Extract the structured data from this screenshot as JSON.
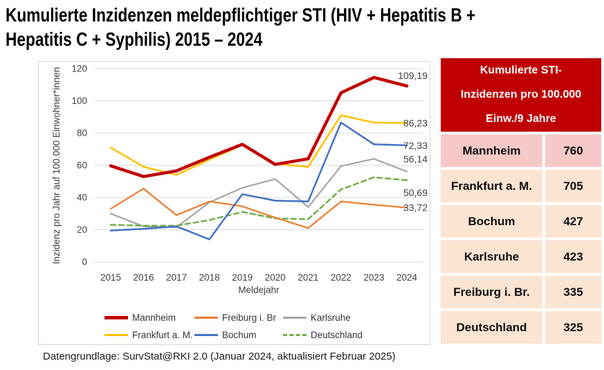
{
  "title": {
    "line1": "Kumulierte Inzidenzen meldepflichtiger STI (HIV + Hepatitis B +",
    "line2": "Hepatitis C + Syphilis) 2015 – 2024"
  },
  "chart_data": {
    "type": "line",
    "x": [
      2015,
      2016,
      2017,
      2018,
      2019,
      2020,
      2021,
      2022,
      2023,
      2024
    ],
    "xlabel": "Meldejahr",
    "ylabel": "Inzidenz pro Jahr auf 100.000 Einwohner*innen",
    "ylim": [
      0,
      120
    ],
    "ytick_step": 20,
    "grid": true,
    "legend_position": "bottom",
    "series": [
      {
        "name": "Mannheim",
        "color": "#C00000",
        "width": 4.5,
        "dash": null,
        "end_label": "109,19",
        "values": [
          59.6,
          53,
          56.5,
          65,
          73,
          60.5,
          64,
          105,
          114.5,
          109.19
        ]
      },
      {
        "name": "Freiburg i. Br",
        "color": "#ED7D31",
        "width": 2.25,
        "dash": null,
        "end_label": "33,72",
        "values": [
          33,
          45.5,
          29,
          37.5,
          34.5,
          27.5,
          21,
          37.5,
          35.5,
          33.72
        ]
      },
      {
        "name": "Karlsruhe",
        "color": "#A6A6A6",
        "width": 2.25,
        "dash": null,
        "end_label": "56,14",
        "values": [
          30,
          22,
          21.5,
          37,
          46,
          51.5,
          34,
          59.5,
          64,
          56.14
        ]
      },
      {
        "name": "Frankfurt a. M.",
        "color": "#FFC000",
        "width": 2.5,
        "dash": null,
        "end_label": "86,23",
        "values": [
          71,
          59,
          54,
          63.5,
          72.5,
          61,
          59,
          91,
          86.5,
          86.23
        ]
      },
      {
        "name": "Bochum",
        "color": "#4472C4",
        "width": 2.5,
        "dash": null,
        "end_label": "72,33",
        "values": [
          19.5,
          20.5,
          22,
          14,
          42,
          38,
          37.5,
          86.5,
          73,
          72.33
        ]
      },
      {
        "name": "Deutschland",
        "color": "#70AD47",
        "width": 2.5,
        "dash": "7,5",
        "end_label": "50,69",
        "values": [
          23,
          22.5,
          22.5,
          26,
          31,
          27,
          26.5,
          45,
          52.5,
          50.69
        ]
      }
    ]
  },
  "table": {
    "header_lines": [
      "Kumulierte STI-",
      "Inzidenzen pro 100.000",
      "Einw./9 Jahre"
    ],
    "header_bg": "#C00000",
    "header_fg": "#FFFFFF",
    "row_highlight_bg": "#F7C8C8",
    "row_bg": "#FCE4D2",
    "rows": [
      {
        "name": "Mannheim",
        "value": "760"
      },
      {
        "name": "Frankfurt a. M.",
        "value": "705"
      },
      {
        "name": "Bochum",
        "value": "427"
      },
      {
        "name": "Karlsruhe",
        "value": "423"
      },
      {
        "name": "Freiburg i. Br.",
        "value": "335"
      },
      {
        "name": "Deutschland",
        "value": "325"
      }
    ]
  },
  "footer": "Datengrundlage: SurvStat@RKI 2.0 (Januar 2024, aktualisiert Februar 2025)"
}
